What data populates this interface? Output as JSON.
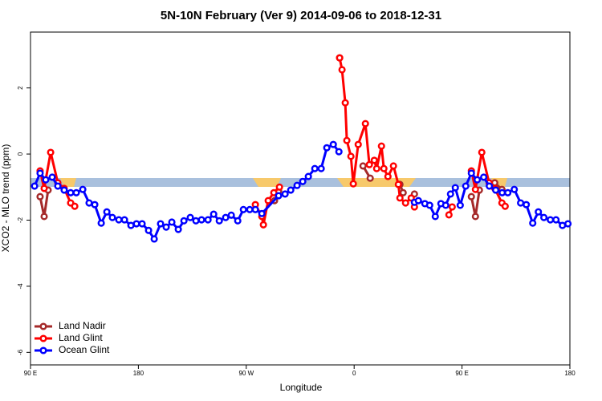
{
  "chart_data": {
    "type": "line",
    "title": "5N-10N February (Ver 9)   2014-09-06 to 2018-12-31",
    "xlabel": "Longitude",
    "ylabel": "XCO2 - MLO trend (ppm)",
    "xlim": [
      90,
      540
    ],
    "ylim": [
      -6.38,
      3.69
    ],
    "xticks": [
      {
        "value": 90,
        "label": "90 E"
      },
      180,
      {
        "value": 270,
        "label": "90 W"
      },
      0,
      {
        "value": 450,
        "label": "90 E"
      },
      {
        "value": 540,
        "label": "180"
      }
    ],
    "yticks": [
      -6,
      -4,
      -2,
      0,
      2
    ],
    "legend": "bottom-left",
    "series": [
      {
        "name": "Land Nadir",
        "color": "#a52a2a",
        "x": [
          98,
          101.4,
          104.7,
          null,
          293.6,
          297,
          null,
          347.9,
          null,
          367.4,
          373.4,
          null,
          398.2,
          400.9,
          null,
          410.3,
          null,
          457.8,
          461.2,
          464.5,
          null,
          477.3,
          483.3
        ],
        "values": [
          -1.29,
          -1.89,
          -1.09,
          null,
          -1.41,
          -1.12,
          null,
          2.91,
          null,
          -0.36,
          -0.73,
          null,
          -0.92,
          -1.17,
          null,
          -1.21,
          null,
          -1.29,
          -1.89,
          -1.09,
          null,
          -0.87,
          -1.07
        ]
      },
      {
        "name": "Land Glint",
        "color": "#ff0000",
        "x": [
          98,
          101.4,
          106.8,
          112.8,
          118.1,
          123.5,
          126.9,
          null,
          277.6,
          283.0,
          284.3,
          288.3,
          293.0,
          297.7,
          null,
          347.9,
          349.9,
          352.6,
          353.9,
          357.3,
          359.3,
          363.4,
          369.4,
          372.7,
          376.8,
          378.8,
          382.8,
          384.8,
          388.2,
          392.8,
          396.9,
          398.2,
          402.9,
          407.6,
          410.3,
          null,
          439.1,
          441.8,
          null,
          457.8,
          461.2,
          466.5,
          472.6,
          477.3,
          483.3,
          486.0
        ],
        "values": [
          -0.51,
          -1.04,
          0.05,
          -0.87,
          -1.04,
          -1.48,
          -1.58,
          null,
          -1.53,
          -1.89,
          -2.14,
          -1.41,
          -1.17,
          -1.0,
          null,
          2.91,
          2.55,
          1.55,
          0.41,
          -0.07,
          -0.9,
          0.29,
          0.92,
          -0.32,
          -0.19,
          -0.44,
          0.24,
          -0.44,
          -0.68,
          -0.36,
          -0.92,
          -1.33,
          -1.48,
          -1.33,
          -1.6,
          null,
          -1.84,
          -1.6,
          null,
          -0.51,
          -1.07,
          0.05,
          -0.87,
          -1.04,
          -1.48,
          -1.58
        ]
      },
      {
        "name": "Ocean Glint",
        "color": "#0000ff",
        "x": [
          93.4,
          98.0,
          102.7,
          108.1,
          112.8,
          118.1,
          123.5,
          128.2,
          133.6,
          138.9,
          143.6,
          149.0,
          153.7,
          158.3,
          163.7,
          168.4,
          173.8,
          178.4,
          183.1,
          188.5,
          193.2,
          198.5,
          203.2,
          207.9,
          213.3,
          218.0,
          223.3,
          228.0,
          232.7,
          238.1,
          242.8,
          247.5,
          252.8,
          257.5,
          262.9,
          267.6,
          272.9,
          277.6,
          283.0,
          297.0,
          302.4,
          307.1,
          312.4,
          317.1,
          321.8,
          327.2,
          332.5,
          337.2,
          342.6,
          347.3,
          null,
          410.3,
          413.6,
          419.0,
          423.0,
          427.7,
          432.4,
          436.4,
          440.4,
          444.4,
          448.5,
          453.1,
          457.8,
          462.7,
          468.1,
          472.8,
          478.1,
          483.5,
          488.2,
          493.6,
          498.9,
          503.6,
          509.0,
          513.7,
          518.3,
          523.7,
          528.4,
          533.8,
          538.4
        ],
        "values": [
          -0.97,
          -0.58,
          -0.78,
          -0.7,
          -0.97,
          -1.09,
          -1.17,
          -1.17,
          -1.07,
          -1.48,
          -1.53,
          -2.09,
          -1.75,
          -1.92,
          -1.99,
          -1.99,
          -2.16,
          -2.11,
          -2.11,
          -2.31,
          -2.57,
          -2.11,
          -2.21,
          -2.06,
          -2.28,
          -2.02,
          -1.92,
          -2.02,
          -1.99,
          -1.99,
          -1.82,
          -2.02,
          -1.92,
          -1.85,
          -2.02,
          -1.68,
          -1.68,
          -1.68,
          -1.8,
          -1.26,
          -1.21,
          -1.09,
          -0.95,
          -0.83,
          -0.68,
          -0.44,
          -0.44,
          0.19,
          0.29,
          0.07,
          null,
          -1.46,
          -1.41,
          -1.5,
          -1.55,
          -1.89,
          -1.5,
          -1.55,
          -1.21,
          -1.02,
          -1.55,
          -0.97,
          -0.58,
          -0.78,
          -0.7,
          -0.97,
          -1.09,
          -1.17,
          -1.17,
          -1.07,
          -1.48,
          -1.53,
          -2.09,
          -1.75,
          -1.92,
          -1.99,
          -1.99,
          -2.16,
          -2.11
        ]
      }
    ]
  }
}
